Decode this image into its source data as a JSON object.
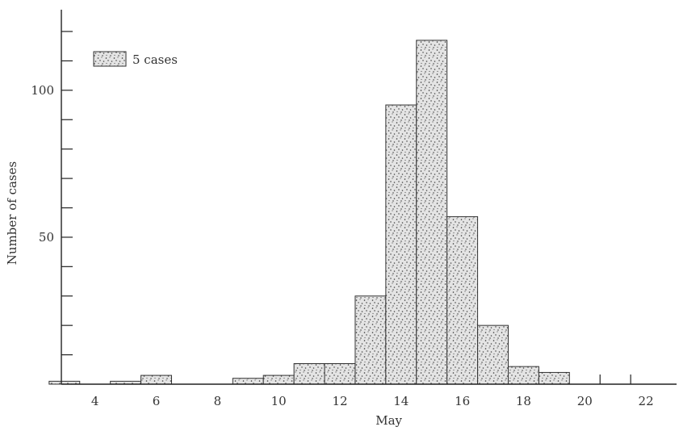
{
  "chart_data": {
    "type": "bar",
    "title": "",
    "xlabel": "May",
    "ylabel": "Number of cases",
    "x_range": [
      2.9,
      23
    ],
    "ylim": [
      0,
      120
    ],
    "x_ticks": [
      4,
      6,
      8,
      10,
      12,
      14,
      16,
      18,
      20,
      22
    ],
    "y_ticks": [
      50,
      100
    ],
    "y_tick_step_minor": 10,
    "grid": false,
    "legend": {
      "position": "top-left",
      "swatch_label": "5 cases"
    },
    "bar_width_days": 1,
    "categories": [
      3,
      5,
      6,
      9,
      10,
      11,
      12,
      13,
      14,
      15,
      16,
      17,
      18,
      19
    ],
    "values": [
      1,
      1,
      3,
      2,
      3,
      7,
      7,
      30,
      95,
      117,
      57,
      20,
      6,
      4
    ]
  }
}
